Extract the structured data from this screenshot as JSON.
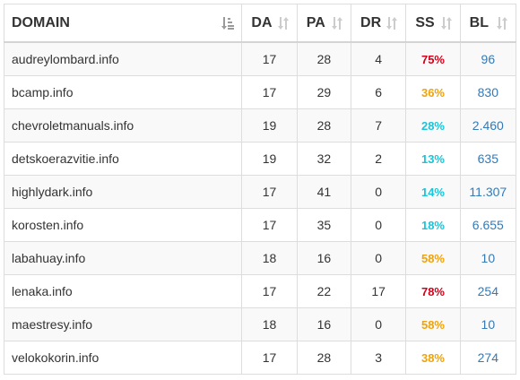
{
  "table": {
    "headers": {
      "domain": "DOMAIN",
      "da": "DA",
      "pa": "PA",
      "dr": "DR",
      "ss": "SS",
      "bl": "BL"
    },
    "sort_icons": {
      "domain": "sort-alpha-asc-icon",
      "other": "sort-both-icon"
    },
    "colors": {
      "ss_red": "#d0021b",
      "ss_orange": "#f0a30a",
      "ss_cyan": "#1bc4d8",
      "bl_link": "#337ab7",
      "sort_icon": "#9a9a9a",
      "sort_icon_light": "#cccccc"
    },
    "rows": [
      {
        "domain": "audreylombard.info",
        "da": "17",
        "pa": "28",
        "dr": "4",
        "ss": "75%",
        "ss_color": "#d0021b",
        "bl": "96"
      },
      {
        "domain": "bcamp.info",
        "da": "17",
        "pa": "29",
        "dr": "6",
        "ss": "36%",
        "ss_color": "#f0a30a",
        "bl": "830"
      },
      {
        "domain": "chevroletmanuals.info",
        "da": "19",
        "pa": "28",
        "dr": "7",
        "ss": "28%",
        "ss_color": "#1bc4d8",
        "bl": "2.460"
      },
      {
        "domain": "detskoerazvitie.info",
        "da": "19",
        "pa": "32",
        "dr": "2",
        "ss": "13%",
        "ss_color": "#1bc4d8",
        "bl": "635"
      },
      {
        "domain": "highlydark.info",
        "da": "17",
        "pa": "41",
        "dr": "0",
        "ss": "14%",
        "ss_color": "#1bc4d8",
        "bl": "11.307"
      },
      {
        "domain": "korosten.info",
        "da": "17",
        "pa": "35",
        "dr": "0",
        "ss": "18%",
        "ss_color": "#1bc4d8",
        "bl": "6.655"
      },
      {
        "domain": "labahuay.info",
        "da": "18",
        "pa": "16",
        "dr": "0",
        "ss": "58%",
        "ss_color": "#f0a30a",
        "bl": "10"
      },
      {
        "domain": "lenaka.info",
        "da": "17",
        "pa": "22",
        "dr": "17",
        "ss": "78%",
        "ss_color": "#d0021b",
        "bl": "254"
      },
      {
        "domain": "maestresy.info",
        "da": "18",
        "pa": "16",
        "dr": "0",
        "ss": "58%",
        "ss_color": "#f0a30a",
        "bl": "10"
      },
      {
        "domain": "velokokorin.info",
        "da": "17",
        "pa": "28",
        "dr": "3",
        "ss": "38%",
        "ss_color": "#f0a30a",
        "bl": "274"
      }
    ]
  }
}
